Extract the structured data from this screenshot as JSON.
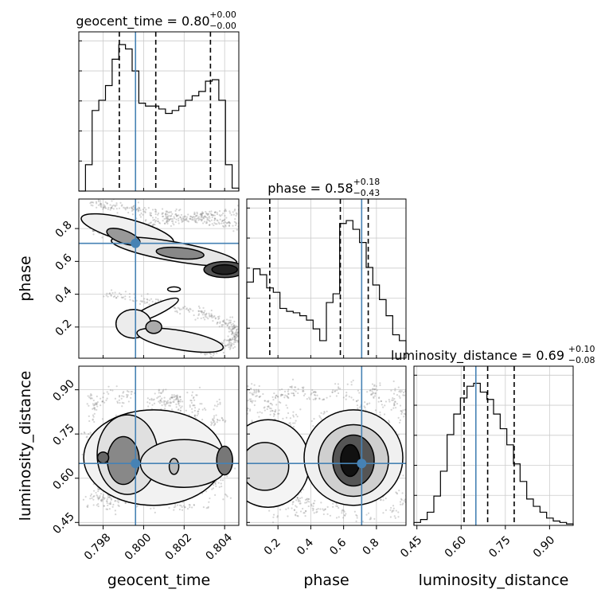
{
  "chart_data": {
    "type": "corner",
    "truth_color": "#4682b4",
    "parameters": [
      {
        "name": "geocent_time",
        "label": "geocent_time",
        "title": "geocent_time = 0.80",
        "title_sup": "+0.00",
        "title_sub": "−0.00",
        "range": [
          0.7968,
          0.8047
        ],
        "ticks": [
          0.798,
          0.8,
          0.802,
          0.804
        ],
        "tick_labels": [
          "0.798",
          "0.800",
          "0.802",
          "0.804"
        ],
        "truth": 0.7996,
        "quantiles": [
          0.7988,
          0.8006,
          0.8033
        ],
        "hist": [
          0.0,
          0.18,
          0.55,
          0.62,
          0.72,
          0.9,
          1.0,
          0.97,
          0.82,
          0.6,
          0.58,
          0.58,
          0.56,
          0.53,
          0.55,
          0.58,
          0.62,
          0.65,
          0.68,
          0.75,
          0.76,
          0.62,
          0.18,
          0.02
        ]
      },
      {
        "name": "phase",
        "label": "phase",
        "title": "phase = 0.58",
        "title_sup": "+0.18",
        "title_sub": "−0.43",
        "range": [
          0.01,
          0.98
        ],
        "ticks": [
          0.2,
          0.4,
          0.6,
          0.8
        ],
        "tick_labels": [
          "0.2",
          "0.4",
          "0.6",
          "0.8"
        ],
        "truth": 0.71,
        "quantiles": [
          0.15,
          0.58,
          0.75
        ],
        "hist": [
          0.52,
          0.61,
          0.57,
          0.48,
          0.45,
          0.34,
          0.32,
          0.31,
          0.29,
          0.26,
          0.2,
          0.12,
          0.38,
          0.44,
          0.92,
          0.94,
          0.88,
          0.79,
          0.62,
          0.5,
          0.4,
          0.29,
          0.16,
          0.12
        ]
      },
      {
        "name": "luminosity_distance",
        "label": "luminosity_distance",
        "title": "luminosity_distance = 0.69",
        "title_sup": "+0.10",
        "title_sub": "−0.08",
        "range": [
          0.44,
          0.98
        ],
        "ticks": [
          0.45,
          0.6,
          0.75,
          0.9
        ],
        "tick_labels": [
          "0.45",
          "0.60",
          "0.75",
          "0.90"
        ],
        "truth": 0.65,
        "quantiles": [
          0.61,
          0.69,
          0.78
        ],
        "hist": [
          0.02,
          0.04,
          0.09,
          0.2,
          0.37,
          0.62,
          0.76,
          0.87,
          0.95,
          0.97,
          0.91,
          0.86,
          0.76,
          0.66,
          0.55,
          0.42,
          0.3,
          0.18,
          0.13,
          0.09,
          0.05,
          0.03,
          0.02,
          0.01
        ]
      }
    ]
  }
}
